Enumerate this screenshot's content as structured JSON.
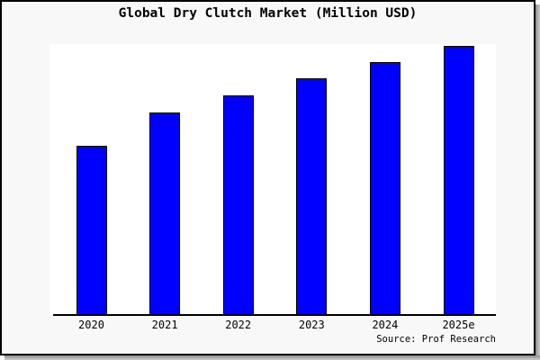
{
  "chart": {
    "title": "Global Dry Clutch Market (Million USD)",
    "source": "Source: Prof Research"
  },
  "colors": {
    "bar_fill": "#0000ff",
    "bar_border": "#000000",
    "canvas_background": "#f8f8f8",
    "plot_background": "#ffffff",
    "axis_line": "#000000",
    "text": "#000000"
  },
  "chart_data": {
    "type": "bar",
    "title": "Global Dry Clutch Market (Million USD)",
    "categories": [
      "2020",
      "2021",
      "2022",
      "2023",
      "2024",
      "2025e"
    ],
    "values": [
      62.5,
      74.9,
      81.1,
      87.4,
      93.4,
      99.3
    ],
    "values_note": "estimated percent of plot height; chart shows no y-axis, ticks, gridlines or value labels",
    "xlabel": "",
    "ylabel": "",
    "ylim": [
      0,
      100
    ],
    "grid": false,
    "legend": false,
    "bar_color": "#0000ff",
    "bar_edge_color": "#000000",
    "annotations": [
      "Source: Prof Research"
    ]
  }
}
